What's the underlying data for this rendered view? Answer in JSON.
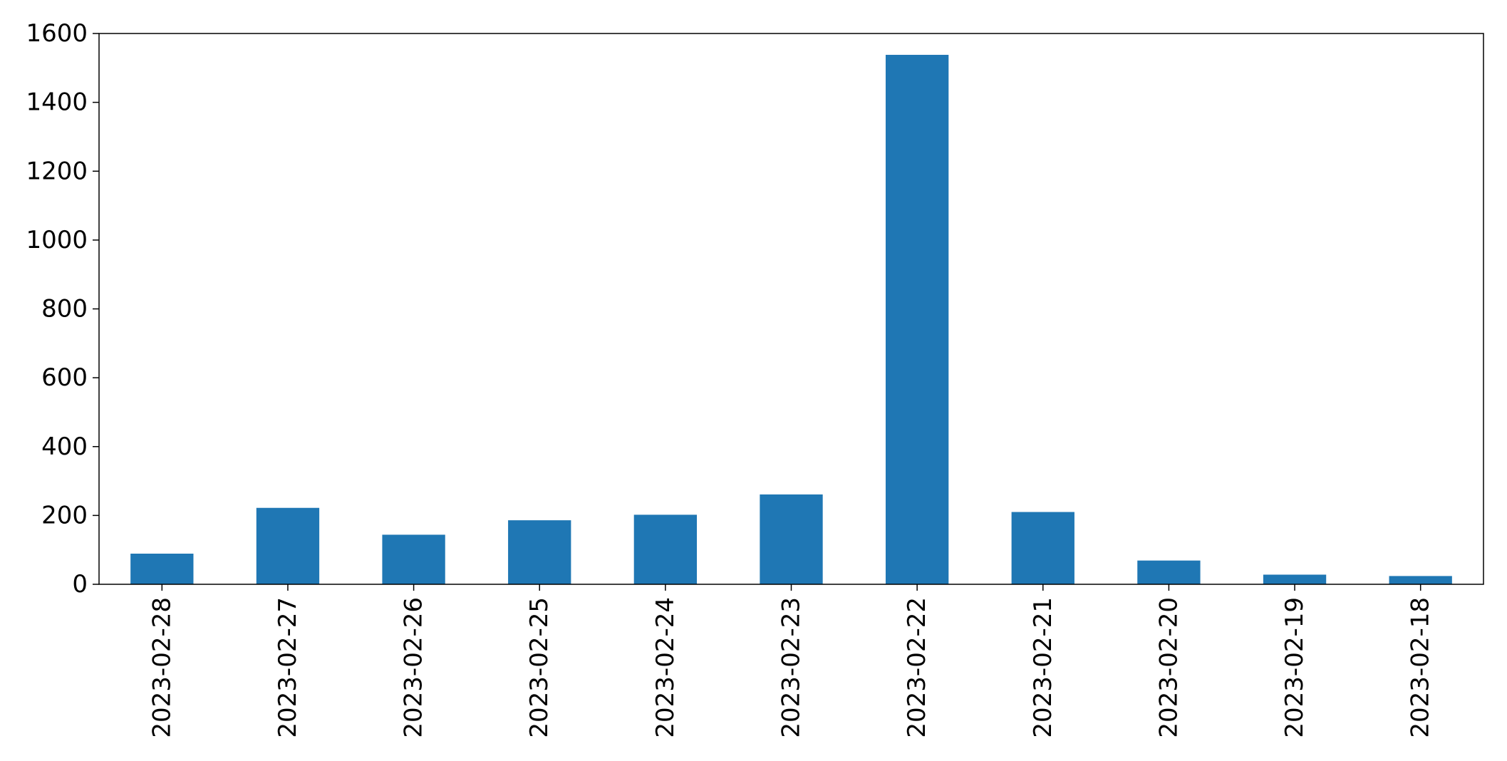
{
  "chart_data": {
    "type": "bar",
    "title": "",
    "xlabel": "",
    "ylabel": "",
    "categories": [
      "2023-02-28",
      "2023-02-27",
      "2023-02-26",
      "2023-02-25",
      "2023-02-24",
      "2023-02-23",
      "2023-02-22",
      "2023-02-21",
      "2023-02-20",
      "2023-02-19",
      "2023-02-18"
    ],
    "values": [
      89,
      222,
      144,
      186,
      202,
      261,
      1538,
      210,
      69,
      28,
      24
    ],
    "ylim": [
      0,
      1600
    ],
    "yticks": [
      0,
      200,
      400,
      600,
      800,
      1000,
      1200,
      1400,
      1600
    ],
    "ytick_labels": [
      "0",
      "200",
      "400",
      "600",
      "800",
      "1000",
      "1200",
      "1400",
      "1600"
    ],
    "bar_color": "#1f77b4",
    "grid": false,
    "legend": "none"
  }
}
